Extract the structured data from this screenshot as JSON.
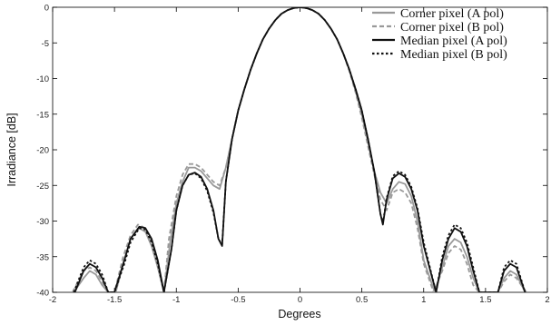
{
  "chart_data": {
    "type": "line",
    "title": "",
    "xlabel": "Degrees",
    "ylabel": "Irradiance [dB]",
    "xlim": [
      -2,
      2
    ],
    "ylim": [
      -40,
      0
    ],
    "xticks": [
      "-2",
      "-1.5",
      "-1",
      "-0.5",
      "0",
      "0.5",
      "1",
      "1.5",
      "2"
    ],
    "yticks": [
      "0",
      "-5",
      "-10",
      "-15",
      "-20",
      "-25",
      "-30",
      "-35",
      "-40"
    ],
    "grid": false,
    "legend_position": "top-right",
    "series": [
      {
        "name": "Corner pixel (A pol)",
        "color": "#999999",
        "dash": "solid",
        "x": [
          -1.83,
          -1.75,
          -1.7,
          -1.65,
          -1.6,
          -1.55,
          -1.49,
          -1.43,
          -1.37,
          -1.3,
          -1.25,
          -1.2,
          -1.15,
          -1.1,
          -1.05,
          -1.0,
          -0.95,
          -0.9,
          -0.85,
          -0.8,
          -0.75,
          -0.7,
          -0.65,
          -0.6,
          -0.55,
          -0.5,
          -0.45,
          -0.4,
          -0.35,
          -0.3,
          -0.25,
          -0.2,
          -0.15,
          -0.1,
          -0.05,
          0.0,
          0.05,
          0.1,
          0.15,
          0.2,
          0.25,
          0.3,
          0.35,
          0.4,
          0.45,
          0.5,
          0.55,
          0.6,
          0.65,
          0.7,
          0.75,
          0.8,
          0.85,
          0.9,
          0.95,
          1.0,
          1.09,
          1.15,
          1.2,
          1.25,
          1.3,
          1.35,
          1.4,
          1.45,
          1.6,
          1.65,
          1.7,
          1.75,
          1.82
        ],
        "y": [
          -40,
          -38.0,
          -37.0,
          -37.5,
          -39.0,
          -40,
          -40,
          -36.0,
          -32.5,
          -31.0,
          -31.5,
          -33.5,
          -36.5,
          -40,
          -33.0,
          -27.5,
          -24.5,
          -22.5,
          -22.5,
          -23.0,
          -24.0,
          -25.0,
          -25.5,
          -22.5,
          -18.5,
          -14.5,
          -11.5,
          -8.8,
          -6.5,
          -4.5,
          -3.0,
          -1.8,
          -0.9,
          -0.4,
          -0.1,
          0.0,
          -0.1,
          -0.4,
          -0.9,
          -1.8,
          -3.0,
          -4.5,
          -6.5,
          -8.8,
          -11.8,
          -15.0,
          -19.0,
          -23.0,
          -26.0,
          -27.5,
          -25.5,
          -24.5,
          -24.8,
          -26.5,
          -30.0,
          -35.5,
          -40,
          -36.5,
          -33.5,
          -32.5,
          -33.0,
          -35.0,
          -38.0,
          -40,
          -40,
          -38.0,
          -37.0,
          -37.5,
          -40
        ]
      },
      {
        "name": "Corner pixel (B pol)",
        "color": "#999999",
        "dash": "dashed",
        "x": [
          -1.84,
          -1.75,
          -1.7,
          -1.65,
          -1.6,
          -1.55,
          -1.5,
          -1.43,
          -1.37,
          -1.31,
          -1.25,
          -1.2,
          -1.15,
          -1.1,
          -1.06,
          -1.0,
          -0.95,
          -0.9,
          -0.85,
          -0.8,
          -0.75,
          -0.7,
          -0.65,
          -0.6,
          -0.55,
          -0.5,
          -0.45,
          -0.4,
          -0.35,
          -0.3,
          -0.25,
          -0.2,
          -0.15,
          -0.1,
          -0.05,
          0.0,
          0.05,
          0.1,
          0.15,
          0.2,
          0.25,
          0.3,
          0.35,
          0.4,
          0.45,
          0.5,
          0.55,
          0.6,
          0.65,
          0.7,
          0.75,
          0.8,
          0.85,
          0.9,
          0.95,
          1.0,
          1.08,
          1.15,
          1.2,
          1.25,
          1.3,
          1.35,
          1.4,
          1.45,
          1.6,
          1.65,
          1.7,
          1.75,
          1.83
        ],
        "y": [
          -40,
          -37.0,
          -36.5,
          -37.0,
          -38.5,
          -40,
          -40,
          -35.0,
          -32.0,
          -30.5,
          -31.0,
          -33.0,
          -36.0,
          -40,
          -32.5,
          -26.5,
          -23.5,
          -22.0,
          -22.0,
          -22.5,
          -23.5,
          -24.5,
          -25.0,
          -22.5,
          -18.5,
          -14.5,
          -11.5,
          -8.8,
          -6.5,
          -4.5,
          -3.0,
          -1.8,
          -0.9,
          -0.4,
          -0.1,
          0.0,
          -0.1,
          -0.4,
          -0.9,
          -1.8,
          -3.0,
          -4.5,
          -6.5,
          -9.0,
          -12.0,
          -15.5,
          -19.5,
          -23.5,
          -27.0,
          -28.5,
          -26.0,
          -25.5,
          -26.0,
          -27.5,
          -31.0,
          -36.0,
          -40,
          -37.0,
          -34.5,
          -33.5,
          -34.0,
          -36.0,
          -39.0,
          -40,
          -40,
          -38.5,
          -37.5,
          -38.0,
          -40
        ]
      },
      {
        "name": "Median pixel (A pol)",
        "color": "#111111",
        "dash": "solid",
        "x": [
          -1.82,
          -1.75,
          -1.7,
          -1.65,
          -1.6,
          -1.55,
          -1.5,
          -1.42,
          -1.37,
          -1.3,
          -1.25,
          -1.2,
          -1.15,
          -1.1,
          -1.04,
          -1.0,
          -0.95,
          -0.9,
          -0.85,
          -0.8,
          -0.75,
          -0.7,
          -0.66,
          -0.63,
          -0.6,
          -0.55,
          -0.5,
          -0.45,
          -0.4,
          -0.35,
          -0.3,
          -0.25,
          -0.2,
          -0.15,
          -0.1,
          -0.05,
          0.0,
          0.05,
          0.1,
          0.15,
          0.2,
          0.25,
          0.3,
          0.35,
          0.4,
          0.45,
          0.5,
          0.55,
          0.6,
          0.65,
          0.67,
          0.7,
          0.75,
          0.8,
          0.85,
          0.9,
          0.95,
          1.0,
          1.1,
          1.15,
          1.2,
          1.25,
          1.3,
          1.35,
          1.4,
          1.45,
          1.6,
          1.65,
          1.7,
          1.75,
          1.82
        ],
        "y": [
          -40,
          -37.0,
          -36.0,
          -36.5,
          -38.0,
          -40,
          -40,
          -35.5,
          -32.5,
          -30.8,
          -31.0,
          -32.5,
          -35.5,
          -40,
          -34.0,
          -28.5,
          -25.0,
          -23.5,
          -23.2,
          -23.8,
          -25.5,
          -28.5,
          -32.5,
          -33.5,
          -24.5,
          -18.5,
          -14.5,
          -11.5,
          -8.8,
          -6.5,
          -4.5,
          -3.0,
          -1.8,
          -0.9,
          -0.4,
          -0.1,
          0.0,
          -0.1,
          -0.4,
          -0.9,
          -1.8,
          -3.0,
          -4.5,
          -6.5,
          -8.8,
          -11.5,
          -14.5,
          -18.5,
          -23.0,
          -29.0,
          -30.5,
          -27.0,
          -24.0,
          -23.3,
          -23.8,
          -25.5,
          -28.5,
          -33.5,
          -40,
          -35.5,
          -32.5,
          -31.0,
          -31.5,
          -33.5,
          -37.0,
          -40,
          -40,
          -37.0,
          -36.0,
          -36.5,
          -40
        ]
      },
      {
        "name": "Median pixel (B pol)",
        "color": "#111111",
        "dash": "dotted",
        "x": [
          -1.83,
          -1.75,
          -1.7,
          -1.65,
          -1.6,
          -1.55,
          -1.5,
          -1.42,
          -1.37,
          -1.3,
          -1.25,
          -1.2,
          -1.15,
          -1.1,
          -1.04,
          -1.0,
          -0.95,
          -0.9,
          -0.85,
          -0.8,
          -0.75,
          -0.7,
          -0.66,
          -0.63,
          -0.6,
          -0.55,
          -0.5,
          -0.45,
          -0.4,
          -0.35,
          -0.3,
          -0.25,
          -0.2,
          -0.15,
          -0.1,
          -0.05,
          0.0,
          0.05,
          0.1,
          0.15,
          0.2,
          0.25,
          0.3,
          0.35,
          0.4,
          0.45,
          0.5,
          0.55,
          0.6,
          0.65,
          0.67,
          0.7,
          0.75,
          0.8,
          0.85,
          0.9,
          0.95,
          1.0,
          1.1,
          1.15,
          1.2,
          1.25,
          1.3,
          1.35,
          1.4,
          1.45,
          1.6,
          1.65,
          1.7,
          1.75,
          1.82
        ],
        "y": [
          -40,
          -36.5,
          -35.5,
          -36.0,
          -37.5,
          -40,
          -40,
          -36.0,
          -33.0,
          -31.0,
          -31.2,
          -33.0,
          -36.0,
          -40,
          -34.0,
          -28.5,
          -25.0,
          -23.5,
          -23.3,
          -24.0,
          -25.8,
          -28.8,
          -32.5,
          -33.3,
          -24.5,
          -18.5,
          -14.5,
          -11.5,
          -8.8,
          -6.5,
          -4.5,
          -3.0,
          -1.8,
          -0.9,
          -0.4,
          -0.1,
          0.0,
          -0.1,
          -0.4,
          -0.9,
          -1.8,
          -3.0,
          -4.5,
          -6.5,
          -8.8,
          -11.5,
          -14.5,
          -18.5,
          -23.0,
          -29.0,
          -30.3,
          -26.8,
          -23.7,
          -23.0,
          -23.5,
          -25.2,
          -28.2,
          -33.0,
          -40,
          -35.0,
          -32.0,
          -30.5,
          -31.0,
          -33.0,
          -36.5,
          -40,
          -40,
          -36.5,
          -35.5,
          -36.0,
          -40
        ]
      }
    ]
  }
}
